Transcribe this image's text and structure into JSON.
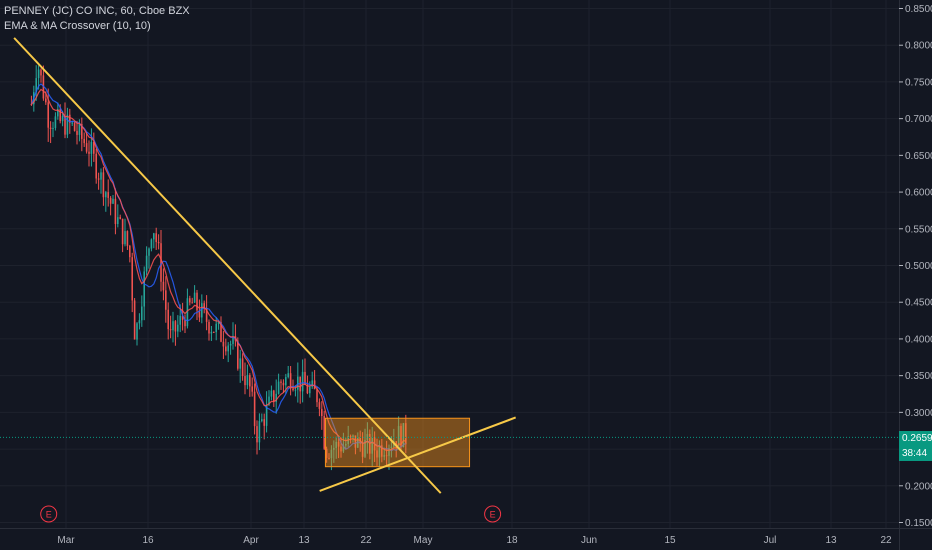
{
  "legend": {
    "symbol_line": "PENNEY (JC) CO INC, 60, Cboe BZX",
    "indicator_line": "EMA & MA Crossover (10, 10)"
  },
  "price_tags": {
    "last_price": "0.2659",
    "countdown": "38:44"
  },
  "earnings_marker_label": "E",
  "colors": {
    "background": "#131722",
    "grid": "#1e222d",
    "up_candle": "#26a69a",
    "down_candle": "#ef5350",
    "ema": "#ff5252",
    "ma": "#2962ff",
    "trendline": "#f7c948",
    "range_box": "#f7931a",
    "last_price": "#089981",
    "earnings_marker": "#f23645"
  },
  "chart_data": {
    "type": "candlestick",
    "symbol": "PENNEY (JC) CO INC",
    "interval": "60",
    "exchange": "Cboe BZX",
    "indicator": "EMA & MA Crossover (10, 10)",
    "y_axis": {
      "ticks": [
        "0.8500",
        "0.8000",
        "0.7500",
        "0.7000",
        "0.6500",
        "0.6000",
        "0.5500",
        "0.5000",
        "0.4500",
        "0.4000",
        "0.3500",
        "0.3000",
        "0.2500",
        "0.2000",
        "0.1500"
      ],
      "range": [
        0.15,
        0.85
      ]
    },
    "x_axis": {
      "ticks": [
        "Mar",
        "16",
        "Apr",
        "13",
        "22",
        "May",
        "18",
        "Jun",
        "15",
        "Jul",
        "13",
        "22"
      ]
    },
    "last_price": 0.2659,
    "price_path": [
      {
        "date": "2020-02-24",
        "price": 0.72
      },
      {
        "date": "2020-02-25",
        "price": 0.78
      },
      {
        "date": "2020-02-27",
        "price": 0.7
      },
      {
        "date": "2020-03-02",
        "price": 0.69
      },
      {
        "date": "2020-03-05",
        "price": 0.66
      },
      {
        "date": "2020-03-09",
        "price": 0.58
      },
      {
        "date": "2020-03-12",
        "price": 0.52
      },
      {
        "date": "2020-03-13",
        "price": 0.4
      },
      {
        "date": "2020-03-16",
        "price": 0.56
      },
      {
        "date": "2020-03-17",
        "price": 0.52
      },
      {
        "date": "2020-03-19",
        "price": 0.4
      },
      {
        "date": "2020-03-23",
        "price": 0.45
      },
      {
        "date": "2020-03-26",
        "price": 0.42
      },
      {
        "date": "2020-03-30",
        "price": 0.39
      },
      {
        "date": "2020-04-02",
        "price": 0.33
      },
      {
        "date": "2020-04-03",
        "price": 0.27
      },
      {
        "date": "2020-04-07",
        "price": 0.34
      },
      {
        "date": "2020-04-09",
        "price": 0.35
      },
      {
        "date": "2020-04-14",
        "price": 0.32
      },
      {
        "date": "2020-04-15",
        "price": 0.25
      },
      {
        "date": "2020-04-20",
        "price": 0.26
      },
      {
        "date": "2020-04-24",
        "price": 0.25
      },
      {
        "date": "2020-04-28",
        "price": 0.27
      },
      {
        "date": "2020-04-29",
        "price": 0.2659
      }
    ],
    "drawings": {
      "downtrend_line": [
        {
          "date": "2020-02-21",
          "price": 0.81
        },
        {
          "date": "2020-05-05",
          "price": 0.19
        }
      ],
      "uptrend_line": [
        {
          "date": "2020-04-14",
          "price": 0.193
        },
        {
          "date": "2020-05-18",
          "price": 0.293
        }
      ],
      "range_box": {
        "start": "2020-04-15",
        "end": "2020-05-10",
        "top": 0.292,
        "bottom": 0.226
      }
    },
    "earnings_markers": [
      "2020-02-27",
      "2020-05-14"
    ]
  }
}
